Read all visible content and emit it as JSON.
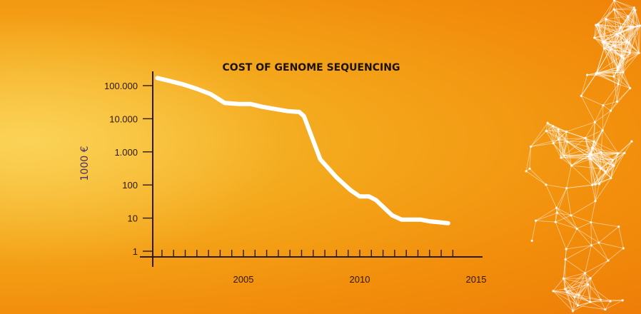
{
  "chart_data": {
    "type": "line",
    "title": "COST OF GENOME SEQUENCING",
    "ylabel": "1000 €",
    "xlabel": "",
    "yscale": "log",
    "ylim": [
      1,
      200000
    ],
    "xlim": [
      2001,
      2016
    ],
    "y_ticks": [
      {
        "value": 100000,
        "label": "100.000"
      },
      {
        "value": 10000,
        "label": "10.000"
      },
      {
        "value": 1000,
        "label": "1.000"
      },
      {
        "value": 100,
        "label": "100"
      },
      {
        "value": 10,
        "label": "10"
      },
      {
        "value": 1,
        "label": "1"
      }
    ],
    "x_tick_labels": [
      {
        "value": 2005,
        "label": "2005"
      },
      {
        "value": 2010,
        "label": "2010"
      },
      {
        "value": 2015,
        "label": "2015"
      }
    ],
    "minor_x_ticks_per_year": 2,
    "series": [
      {
        "color": "#ffffff",
        "x": [
          2001.3,
          2001.8,
          2002.4,
          2003.0,
          2003.6,
          2004.2,
          2004.8,
          2005.3,
          2005.8,
          2006.3,
          2006.9,
          2007.4,
          2007.6,
          2008.3,
          2009.0,
          2009.6,
          2010.0,
          2010.4,
          2010.7,
          2011.0,
          2011.4,
          2011.8,
          2012.2,
          2012.6,
          2013.0,
          2013.4,
          2013.8
        ],
        "y": [
          170000,
          140000,
          110000,
          80000,
          55000,
          30000,
          28000,
          28000,
          23000,
          20000,
          17000,
          16000,
          12000,
          600,
          170,
          70,
          45,
          45,
          35,
          22,
          12,
          9,
          9,
          9,
          8,
          7.5,
          7
        ]
      }
    ]
  }
}
